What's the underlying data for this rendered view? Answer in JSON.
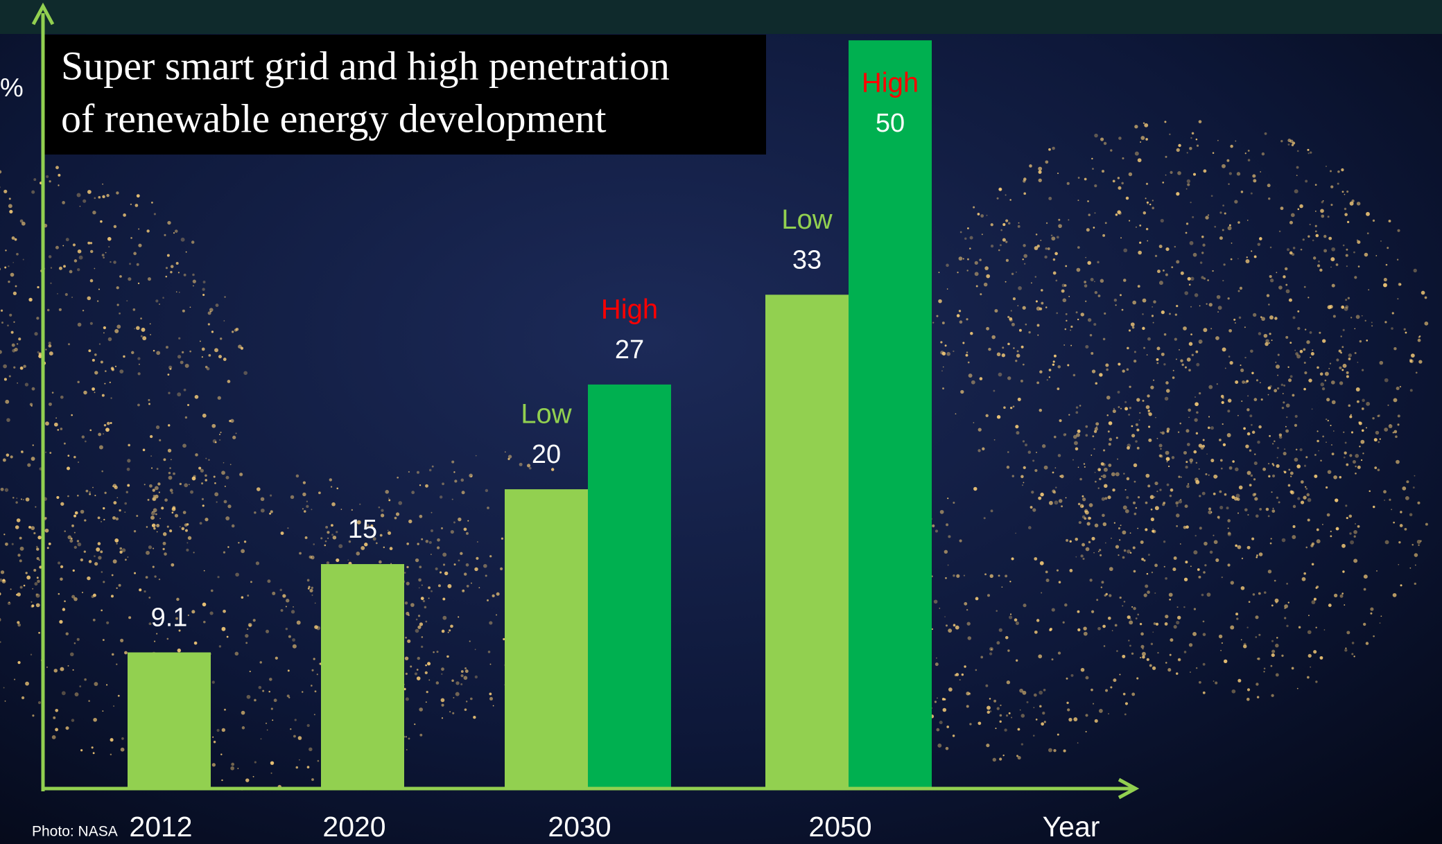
{
  "chart_data": {
    "type": "bar",
    "title": [
      "Super smart grid and high penetration",
      "of renewable energy development"
    ],
    "y_label": "%",
    "x_label": "Year",
    "credit": "Photo: NASA",
    "categories": [
      "2012",
      "2020",
      "2030",
      "2050"
    ],
    "series": [
      {
        "name": "Low",
        "color": "#92d050",
        "values": [
          9.1,
          15,
          20,
          33
        ]
      },
      {
        "name": "High",
        "color": "#00b050",
        "values": [
          null,
          null,
          27,
          50
        ]
      }
    ],
    "ylim": [
      0,
      52
    ],
    "axis_color": "#92d050"
  }
}
